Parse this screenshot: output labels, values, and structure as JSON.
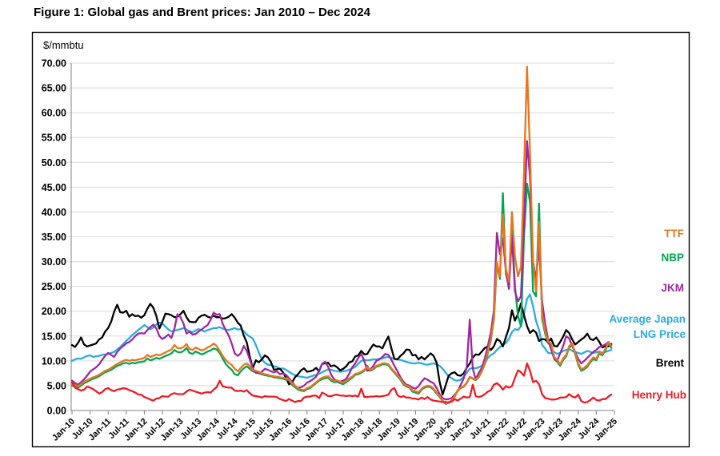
{
  "title": "Figure 1: Global gas and Brent prices: Jan 2010 – Dec 2024",
  "chart_data": {
    "type": "line",
    "unit_label": "$/mmbtu",
    "x_range": {
      "start": "Jan-2010",
      "end": "Dec-2024",
      "interval": "monthly"
    },
    "x_tick_labels": [
      "Jan-10",
      "Jul-10",
      "Jan-11",
      "Jul-11",
      "Jan-12",
      "Jul-12",
      "Jan-13",
      "Jul-13",
      "Jan-14",
      "Jul-14",
      "Jan-15",
      "Jul-15",
      "Jan-16",
      "Jul-16",
      "Jan-17",
      "Jul-17",
      "Jan-18",
      "Jul-18",
      "Jan-19",
      "Jul-19",
      "Jan-20",
      "Jul-20",
      "Jan-21",
      "Jul-21",
      "Jan-22",
      "Jul-22",
      "Jan-23",
      "Jul-23",
      "Jan-24",
      "Jul-24",
      "Jan-25"
    ],
    "y_axis": {
      "min": 0,
      "max": 70,
      "step": 5,
      "tick_labels": [
        "0.00",
        "5.00",
        "10.00",
        "15.00",
        "20.00",
        "25.00",
        "30.00",
        "35.00",
        "40.00",
        "45.00",
        "50.00",
        "55.00",
        "60.00",
        "65.00",
        "70.00"
      ]
    },
    "grid": "horizontal",
    "legend_position": "right",
    "series": [
      {
        "id": "ttf",
        "name": "TTF",
        "color": "#E8761E",
        "legend_lines": [
          "TTF"
        ],
        "values": [
          5.3,
          5.1,
          4.9,
          5.3,
          5.8,
          6.1,
          6.4,
          6.7,
          6.9,
          7.2,
          7.6,
          8.0,
          8.2,
          8.6,
          9.0,
          9.4,
          9.7,
          10.0,
          10.2,
          10.0,
          10.2,
          10.1,
          10.3,
          10.4,
          10.6,
          11.2,
          10.8,
          11.0,
          11.3,
          11.1,
          11.4,
          11.7,
          12.0,
          12.3,
          13.2,
          12.6,
          12.5,
          12.8,
          13.4,
          12.4,
          12.2,
          12.7,
          12.4,
          12.1,
          12.3,
          12.7,
          13.0,
          13.5,
          13.0,
          12.0,
          11.0,
          10.2,
          9.6,
          9.2,
          8.4,
          7.9,
          8.6,
          9.2,
          9.5,
          8.9,
          8.2,
          8.0,
          7.8,
          7.5,
          7.3,
          7.2,
          7.0,
          6.9,
          6.8,
          6.7,
          6.6,
          6.5,
          6.2,
          5.5,
          5.0,
          4.4,
          4.2,
          4.1,
          4.5,
          4.7,
          5.2,
          5.7,
          6.2,
          6.6,
          6.8,
          6.9,
          6.3,
          6.0,
          6.1,
          5.8,
          5.6,
          6.0,
          6.5,
          6.8,
          7.4,
          7.5,
          7.8,
          8.2,
          8.8,
          8.2,
          8.5,
          9.0,
          9.2,
          9.5,
          9.5,
          9.3,
          8.5,
          7.8,
          7.1,
          6.4,
          5.4,
          5.0,
          4.8,
          4.0,
          3.9,
          3.7,
          4.4,
          4.8,
          5.0,
          4.9,
          4.4,
          3.6,
          2.9,
          2.0,
          1.4,
          1.7,
          2.0,
          2.9,
          4.1,
          4.6,
          4.9,
          5.6,
          6.8,
          6.5,
          6.2,
          6.8,
          8.0,
          9.5,
          11.8,
          14.5,
          18.5,
          30.0,
          27.0,
          39.5,
          28.5,
          26.0,
          40.0,
          31.0,
          27.0,
          29.0,
          48.0,
          69.3,
          52.0,
          30.0,
          24.0,
          38.0,
          19.5,
          16.0,
          14.0,
          13.5,
          10.8,
          10.2,
          9.3,
          10.5,
          11.2,
          13.0,
          13.5,
          11.6,
          9.5,
          8.3,
          8.6,
          9.1,
          10.0,
          10.7,
          10.4,
          11.8,
          11.4,
          12.4,
          13.8,
          12.9
        ]
      },
      {
        "id": "nbp",
        "name": "NBP",
        "color": "#00A651",
        "legend_lines": [
          "NBP"
        ],
        "values": [
          5.0,
          4.8,
          4.6,
          5.0,
          5.5,
          5.8,
          6.1,
          6.4,
          6.6,
          6.9,
          7.3,
          7.7,
          7.9,
          8.2,
          8.6,
          9.0,
          9.2,
          9.5,
          9.6,
          9.4,
          9.6,
          9.5,
          9.7,
          9.8,
          9.9,
          10.5,
          10.1,
          10.3,
          10.6,
          10.4,
          10.7,
          11.0,
          11.2,
          11.5,
          12.2,
          11.8,
          11.7,
          12.0,
          12.6,
          11.6,
          11.4,
          11.9,
          11.6,
          11.3,
          11.5,
          11.9,
          12.1,
          12.5,
          12.3,
          11.6,
          10.5,
          9.4,
          8.7,
          8.2,
          7.3,
          7.1,
          7.9,
          8.5,
          8.9,
          8.4,
          7.9,
          7.7,
          7.5,
          7.3,
          7.1,
          7.0,
          6.9,
          6.7,
          6.6,
          6.5,
          6.4,
          6.2,
          6.1,
          5.2,
          4.7,
          4.2,
          4.0,
          3.9,
          4.3,
          4.5,
          5.0,
          5.5,
          6.0,
          6.3,
          6.5,
          6.6,
          6.0,
          5.7,
          5.8,
          5.5,
          5.3,
          5.7,
          6.2,
          6.6,
          7.2,
          7.3,
          7.6,
          8.0,
          9.0,
          8.0,
          8.3,
          8.8,
          9.0,
          9.3,
          9.3,
          9.1,
          8.3,
          7.6,
          6.9,
          6.2,
          5.2,
          4.8,
          4.6,
          3.8,
          3.6,
          3.4,
          4.2,
          4.6,
          4.8,
          4.7,
          4.2,
          3.4,
          2.7,
          1.9,
          1.3,
          1.6,
          1.9,
          2.8,
          4.0,
          4.5,
          4.8,
          5.5,
          6.7,
          6.4,
          6.1,
          6.7,
          7.9,
          9.3,
          11.5,
          14.2,
          18.2,
          29.5,
          26.5,
          43.8,
          27.5,
          25.0,
          37.0,
          25.0,
          19.0,
          17.0,
          35.0,
          45.7,
          42.0,
          24.0,
          23.0,
          41.7,
          18.5,
          15.5,
          13.6,
          13.0,
          10.4,
          9.8,
          9.0,
          10.2,
          10.9,
          12.7,
          13.2,
          11.3,
          9.2,
          8.0,
          8.3,
          8.8,
          9.7,
          10.4,
          10.1,
          11.5,
          11.1,
          12.1,
          13.5,
          12.6
        ]
      },
      {
        "id": "jkm",
        "name": "JKM",
        "color": "#9E27A0",
        "legend_lines": [
          "JKM"
        ],
        "values": [
          6.0,
          5.5,
          5.2,
          5.7,
          6.3,
          7.0,
          7.8,
          8.3,
          8.7,
          9.3,
          10.2,
          11.0,
          11.6,
          11.2,
          10.8,
          11.8,
          12.5,
          13.0,
          13.5,
          13.8,
          14.3,
          15.0,
          15.5,
          15.6,
          15.5,
          16.2,
          16.8,
          17.3,
          16.5,
          15.0,
          14.4,
          14.8,
          15.3,
          14.6,
          16.5,
          19.4,
          18.8,
          17.5,
          15.5,
          15.9,
          15.3,
          15.4,
          15.9,
          16.3,
          16.8,
          17.2,
          18.3,
          19.7,
          19.3,
          19.4,
          17.5,
          16.2,
          15.1,
          13.5,
          11.5,
          11.0,
          11.5,
          13.0,
          12.0,
          10.3,
          8.5,
          7.6,
          7.5,
          7.8,
          8.4,
          8.2,
          7.9,
          7.7,
          7.9,
          7.3,
          7.5,
          7.2,
          6.5,
          5.8,
          5.0,
          4.5,
          4.7,
          5.0,
          5.6,
          5.9,
          6.3,
          6.8,
          8.0,
          9.4,
          9.8,
          8.8,
          7.2,
          6.3,
          5.9,
          5.8,
          6.0,
          6.4,
          7.4,
          8.7,
          9.5,
          10.6,
          11.4,
          10.0,
          8.0,
          8.2,
          9.0,
          10.0,
          10.3,
          10.8,
          11.4,
          11.2,
          10.2,
          9.0,
          7.9,
          6.7,
          5.8,
          5.2,
          5.0,
          4.6,
          4.4,
          4.9,
          5.8,
          6.5,
          6.2,
          5.8,
          5.5,
          4.5,
          3.3,
          2.5,
          2.2,
          2.3,
          2.5,
          3.2,
          3.9,
          5.2,
          6.5,
          8.8,
          18.3,
          8.4,
          6.3,
          7.6,
          8.6,
          10.5,
          13.0,
          15.8,
          20.0,
          35.8,
          31.5,
          34.7,
          28.0,
          24.5,
          35.2,
          24.0,
          22.0,
          23.0,
          38.0,
          54.3,
          47.0,
          30.0,
          26.5,
          33.0,
          22.0,
          17.5,
          14.3,
          12.3,
          10.5,
          10.0,
          11.5,
          13.0,
          15.0,
          14.5,
          13.0,
          11.8,
          10.4,
          9.5,
          10.0,
          10.6,
          11.2,
          11.8,
          12.2,
          12.8,
          13.0,
          13.3,
          13.8,
          13.2
        ]
      },
      {
        "id": "japan_lng",
        "name": "Average Japan LNG Price",
        "color": "#29ABE2",
        "legend_lines": [
          "Average Japan",
          "LNG Price"
        ],
        "values": [
          10.0,
          10.3,
          10.5,
          10.4,
          10.7,
          11.0,
          11.1,
          10.8,
          10.9,
          11.0,
          11.2,
          11.3,
          11.4,
          11.6,
          11.8,
          12.3,
          12.8,
          13.4,
          14.0,
          14.6,
          15.2,
          15.7,
          16.2,
          16.7,
          17.2,
          16.8,
          16.4,
          16.7,
          17.3,
          17.7,
          17.5,
          16.9,
          16.3,
          15.9,
          16.1,
          16.2,
          16.4,
          16.6,
          16.3,
          16.0,
          15.8,
          16.1,
          16.4,
          16.2,
          15.9,
          16.2,
          16.4,
          16.6,
          16.6,
          16.8,
          16.5,
          16.3,
          16.2,
          16.4,
          16.6,
          16.3,
          16.4,
          16.0,
          15.3,
          14.9,
          14.5,
          13.2,
          11.7,
          10.3,
          9.6,
          9.2,
          9.2,
          8.9,
          8.8,
          8.4,
          8.5,
          8.2,
          7.8,
          7.4,
          7.1,
          6.9,
          6.8,
          6.7,
          6.6,
          6.8,
          7.0,
          7.2,
          7.4,
          7.7,
          8.0,
          8.3,
          8.2,
          8.0,
          7.9,
          7.8,
          7.9,
          8.0,
          8.2,
          8.5,
          8.8,
          9.4,
          10.0,
          10.2,
          10.1,
          10.2,
          10.3,
          10.3,
          10.4,
          10.5,
          10.7,
          10.8,
          10.6,
          10.4,
          10.3,
          10.2,
          10.0,
          9.8,
          9.6,
          9.5,
          9.5,
          9.6,
          9.5,
          9.3,
          9.2,
          9.4,
          9.5,
          9.3,
          9.0,
          8.4,
          7.6,
          6.9,
          6.5,
          6.1,
          6.0,
          6.2,
          6.8,
          7.6,
          8.4,
          8.6,
          8.5,
          8.7,
          9.0,
          9.5,
          10.6,
          11.2,
          11.5,
          12.2,
          12.8,
          13.2,
          13.6,
          14.5,
          15.8,
          16.4,
          16.2,
          17.0,
          19.5,
          22.5,
          23.4,
          21.0,
          18.0,
          16.2,
          13.2,
          12.5,
          11.6,
          11.5,
          11.8,
          11.4,
          11.6,
          12.0,
          12.2,
          12.4,
          12.0,
          11.8,
          11.6,
          11.4,
          11.7,
          12.0,
          11.8,
          11.6,
          11.7,
          11.9,
          11.6,
          11.8,
          12.0,
          12.2
        ]
      },
      {
        "id": "brent",
        "name": "Brent",
        "color": "#000000",
        "legend_lines": [
          "Brent"
        ],
        "values": [
          13.2,
          12.8,
          13.6,
          14.7,
          13.3,
          12.9,
          13.1,
          13.3,
          13.5,
          14.3,
          14.7,
          15.9,
          16.6,
          17.9,
          19.9,
          21.3,
          19.8,
          19.7,
          20.1,
          18.9,
          19.4,
          19.0,
          19.1,
          18.7,
          19.2,
          20.5,
          21.5,
          20.7,
          19.0,
          16.5,
          17.9,
          19.5,
          19.4,
          19.2,
          18.8,
          18.9,
          19.4,
          20.1,
          18.8,
          17.9,
          17.8,
          17.8,
          18.7,
          19.1,
          19.3,
          18.9,
          18.7,
          19.1,
          18.8,
          18.8,
          18.5,
          18.6,
          18.9,
          19.4,
          18.7,
          17.7,
          17.1,
          15.1,
          13.7,
          10.9,
          8.5,
          10.1,
          9.7,
          10.3,
          11.1,
          10.7,
          9.8,
          8.2,
          8.3,
          8.4,
          7.7,
          6.6,
          5.3,
          5.6,
          6.7,
          7.3,
          8.1,
          8.5,
          7.8,
          7.9,
          8.1,
          8.6,
          7.9,
          9.4,
          9.5,
          9.6,
          8.9,
          9.1,
          8.7,
          8.1,
          8.4,
          8.9,
          9.7,
          9.9,
          10.9,
          11.1,
          12.0,
          11.3,
          11.4,
          12.4,
          13.3,
          12.9,
          12.9,
          12.5,
          13.8,
          14.9,
          12.5,
          10.4,
          10.3,
          11.0,
          11.5,
          12.3,
          12.2,
          11.1,
          11.2,
          10.3,
          10.8,
          10.3,
          10.9,
          11.5,
          11.0,
          9.6,
          5.8,
          3.2,
          5.1,
          7.0,
          7.5,
          7.7,
          7.1,
          7.0,
          7.5,
          8.6,
          9.5,
          10.7,
          11.3,
          11.2,
          11.9,
          12.6,
          12.9,
          12.2,
          12.9,
          14.4,
          14.0,
          12.9,
          14.8,
          16.6,
          20.2,
          18.1,
          19.5,
          21.6,
          19.2,
          17.0,
          15.6,
          16.2,
          15.7,
          14.0,
          14.4,
          14.3,
          13.7,
          14.5,
          13.0,
          12.9,
          13.8,
          14.9,
          16.2,
          15.6,
          14.3,
          13.3,
          13.8,
          14.3,
          14.7,
          15.5,
          14.4,
          14.2,
          14.7,
          13.8,
          12.7,
          13.0,
          12.9,
          13.4
        ]
      },
      {
        "id": "henry_hub",
        "name": "Henry Hub",
        "color": "#EE1C25",
        "legend_lines": [
          "Henry Hub"
        ],
        "values": [
          5.8,
          4.6,
          4.3,
          4.0,
          4.2,
          4.8,
          4.6,
          4.3,
          3.9,
          3.4,
          3.7,
          4.3,
          4.5,
          4.1,
          3.9,
          4.2,
          4.3,
          4.5,
          4.4,
          4.1,
          3.9,
          3.6,
          3.2,
          3.2,
          2.7,
          2.5,
          2.2,
          2.0,
          2.4,
          2.5,
          2.9,
          2.8,
          2.8,
          3.3,
          3.5,
          3.3,
          3.3,
          3.3,
          3.8,
          4.2,
          4.0,
          3.8,
          3.6,
          3.4,
          3.6,
          3.7,
          3.6,
          4.2,
          4.7,
          6.0,
          4.9,
          4.7,
          4.6,
          4.6,
          4.0,
          3.9,
          4.0,
          3.8,
          4.1,
          3.5,
          3.0,
          2.9,
          2.8,
          2.6,
          2.9,
          2.8,
          2.8,
          2.8,
          2.7,
          2.3,
          2.1,
          1.9,
          2.3,
          2.0,
          1.7,
          1.9,
          1.9,
          2.6,
          2.8,
          2.8,
          3.0,
          3.0,
          2.5,
          3.6,
          3.3,
          2.9,
          2.9,
          3.1,
          3.2,
          3.0,
          3.0,
          2.9,
          3.0,
          2.9,
          3.0,
          2.8,
          4.4,
          2.7,
          2.7,
          2.8,
          2.8,
          2.9,
          2.8,
          2.9,
          3.0,
          3.2,
          4.2,
          4.5,
          3.1,
          2.7,
          2.9,
          2.6,
          2.6,
          2.4,
          2.4,
          2.2,
          2.6,
          2.3,
          2.7,
          2.2,
          2.0,
          1.9,
          1.8,
          1.7,
          1.7,
          1.6,
          1.8,
          2.3,
          2.0,
          2.4,
          2.8,
          2.6,
          2.7,
          5.2,
          2.9,
          2.7,
          2.9,
          3.3,
          3.8,
          4.1,
          5.2,
          5.5,
          5.0,
          4.2,
          4.9,
          4.6,
          4.9,
          6.6,
          8.1,
          7.7,
          7.0,
          9.5,
          8.0,
          5.7,
          6.0,
          5.3,
          3.3,
          2.5,
          2.4,
          2.2,
          2.2,
          2.3,
          2.6,
          2.6,
          2.7,
          3.3,
          2.8,
          2.6,
          3.2,
          1.9,
          1.6,
          1.7,
          2.1,
          2.6,
          2.1,
          2.0,
          2.3,
          2.3,
          2.8,
          3.2
        ]
      }
    ]
  }
}
